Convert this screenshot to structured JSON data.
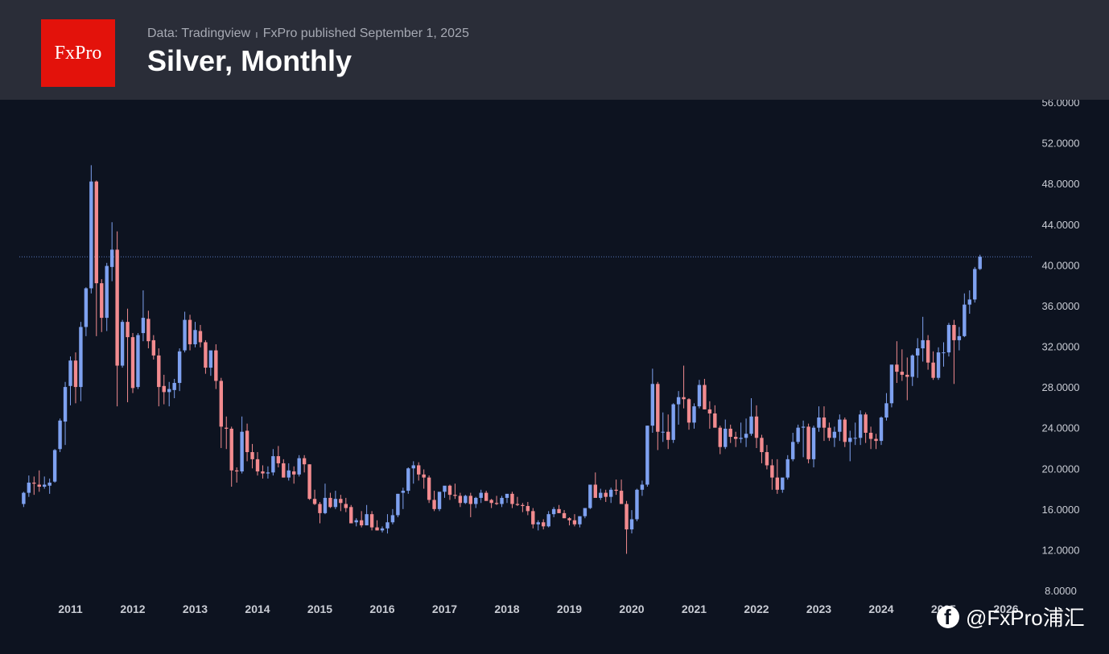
{
  "header": {
    "logo_text": "FxPro",
    "source": "Data: Tradingview",
    "separator": "ı",
    "published": "FxPro published September 1, 2025",
    "title": "Silver, Monthly"
  },
  "watermark": {
    "text": "@FxPro浦汇",
    "icon": "facebook-icon"
  },
  "colors": {
    "up": "#7ea1f0",
    "down": "#f28b8f",
    "background": "#0d1320",
    "header": "#2a2d38",
    "current_line": "#5a7bbd"
  },
  "chart_data": {
    "type": "candlestick",
    "title": "Silver, Monthly",
    "ylim": [
      8,
      56
    ],
    "y_ticks": [
      "56.0000",
      "52.0000",
      "48.0000",
      "44.0000",
      "40.0000",
      "36.0000",
      "32.0000",
      "28.0000",
      "24.0000",
      "20.0000",
      "16.0000",
      "12.0000",
      "8.0000"
    ],
    "x_ticks": [
      "2011",
      "2012",
      "2013",
      "2014",
      "2015",
      "2016",
      "2017",
      "2018",
      "2019",
      "2020",
      "2021",
      "2022",
      "2023",
      "2024",
      "2025",
      "2026"
    ],
    "x_start": "2010-04",
    "current_price_line": 40.8,
    "series": [
      {
        "name": "Silver",
        "ohlc": [
          [
            16.5,
            17.7,
            16.2,
            17.6
          ],
          [
            17.6,
            19.3,
            17.2,
            18.6
          ],
          [
            18.6,
            19.2,
            17.4,
            18.5
          ],
          [
            18.4,
            19.8,
            17.7,
            18.2
          ],
          [
            18.2,
            19.2,
            18.0,
            18.4
          ],
          [
            18.3,
            19.0,
            17.5,
            18.6
          ],
          [
            18.7,
            21.9,
            18.6,
            21.8
          ],
          [
            21.9,
            24.9,
            21.6,
            24.7
          ],
          [
            24.6,
            28.5,
            22.3,
            28.0
          ],
          [
            28.1,
            31.0,
            26.2,
            30.6
          ],
          [
            30.6,
            31.4,
            26.4,
            28.0
          ],
          [
            28.0,
            34.4,
            26.6,
            33.9
          ],
          [
            33.9,
            37.8,
            33.0,
            37.7
          ],
          [
            37.7,
            49.8,
            37.2,
            48.2
          ],
          [
            48.2,
            48.3,
            33.0,
            38.2
          ],
          [
            38.2,
            38.6,
            33.4,
            34.8
          ],
          [
            34.8,
            40.2,
            33.5,
            39.9
          ],
          [
            39.8,
            44.2,
            38.4,
            41.5
          ],
          [
            41.5,
            43.3,
            26.1,
            30.1
          ],
          [
            30.1,
            34.6,
            29.9,
            34.4
          ],
          [
            34.4,
            35.7,
            26.5,
            32.9
          ],
          [
            32.9,
            33.3,
            27.4,
            27.9
          ],
          [
            28.0,
            33.3,
            27.8,
            33.1
          ],
          [
            33.3,
            37.5,
            32.5,
            34.8
          ],
          [
            34.7,
            35.5,
            31.8,
            32.5
          ],
          [
            32.6,
            33.1,
            30.7,
            31.1
          ],
          [
            31.1,
            31.8,
            26.1,
            28.0
          ],
          [
            28.1,
            29.2,
            26.3,
            27.5
          ],
          [
            27.5,
            28.5,
            26.1,
            27.8
          ],
          [
            27.7,
            28.8,
            26.9,
            28.4
          ],
          [
            28.4,
            31.8,
            27.6,
            31.5
          ],
          [
            31.6,
            35.4,
            31.4,
            34.6
          ],
          [
            34.6,
            35.1,
            31.6,
            32.2
          ],
          [
            32.2,
            34.4,
            31.9,
            33.6
          ],
          [
            33.5,
            34.1,
            31.9,
            32.4
          ],
          [
            32.4,
            32.6,
            29.3,
            29.9
          ],
          [
            29.9,
            31.2,
            29.1,
            31.6
          ],
          [
            31.6,
            32.2,
            27.8,
            28.6
          ],
          [
            28.6,
            28.9,
            22.0,
            24.1
          ],
          [
            24.0,
            25.1,
            21.9,
            23.9
          ],
          [
            23.9,
            24.1,
            18.2,
            19.8
          ],
          [
            19.8,
            20.1,
            18.6,
            19.7
          ],
          [
            19.7,
            25.1,
            19.5,
            23.6
          ],
          [
            23.7,
            24.4,
            20.7,
            21.6
          ],
          [
            21.6,
            22.4,
            20.0,
            20.9
          ],
          [
            20.9,
            21.6,
            19.3,
            19.7
          ],
          [
            19.7,
            20.3,
            19.0,
            19.5
          ],
          [
            19.5,
            20.2,
            19.0,
            19.6
          ],
          [
            19.6,
            21.9,
            19.3,
            21.2
          ],
          [
            21.2,
            22.2,
            20.1,
            20.5
          ],
          [
            20.5,
            20.9,
            19.1,
            19.1
          ],
          [
            19.1,
            20.5,
            18.8,
            19.8
          ],
          [
            19.7,
            20.2,
            18.5,
            19.4
          ],
          [
            19.4,
            21.3,
            19.2,
            21.0
          ],
          [
            21.0,
            21.3,
            19.6,
            20.4
          ],
          [
            20.4,
            20.4,
            16.9,
            17.0
          ],
          [
            17.0,
            17.9,
            16.4,
            16.5
          ],
          [
            16.5,
            16.7,
            14.6,
            15.6
          ],
          [
            15.6,
            18.5,
            15.5,
            17.1
          ],
          [
            17.1,
            17.6,
            16.1,
            16.2
          ],
          [
            16.2,
            17.8,
            16.0,
            17.0
          ],
          [
            17.0,
            17.4,
            15.8,
            16.6
          ],
          [
            16.5,
            17.1,
            15.7,
            16.1
          ],
          [
            16.2,
            16.4,
            14.9,
            14.6
          ],
          [
            14.7,
            15.1,
            14.3,
            14.9
          ],
          [
            14.9,
            15.8,
            14.2,
            14.4
          ],
          [
            14.4,
            16.4,
            14.4,
            15.5
          ],
          [
            15.5,
            15.8,
            13.9,
            14.2
          ],
          [
            14.2,
            14.9,
            13.9,
            13.9
          ],
          [
            13.9,
            14.3,
            13.7,
            14.1
          ],
          [
            14.1,
            15.5,
            13.6,
            14.7
          ],
          [
            14.7,
            16.0,
            14.5,
            15.4
          ],
          [
            15.4,
            17.5,
            15.2,
            17.5
          ],
          [
            17.6,
            18.1,
            16.0,
            17.8
          ],
          [
            17.8,
            20.1,
            17.5,
            20.0
          ],
          [
            20.0,
            20.7,
            18.5,
            20.3
          ],
          [
            20.3,
            20.6,
            18.8,
            19.4
          ],
          [
            19.4,
            19.9,
            18.0,
            19.1
          ],
          [
            19.1,
            19.3,
            16.6,
            16.9
          ],
          [
            16.9,
            17.8,
            15.8,
            16.0
          ],
          [
            16.0,
            17.5,
            15.8,
            17.7
          ],
          [
            17.7,
            18.2,
            17.1,
            18.3
          ],
          [
            18.3,
            18.4,
            16.9,
            17.4
          ],
          [
            17.4,
            18.5,
            17.0,
            17.3
          ],
          [
            17.3,
            17.6,
            16.2,
            16.6
          ],
          [
            16.6,
            17.4,
            16.5,
            17.3
          ],
          [
            17.3,
            17.6,
            15.2,
            16.5
          ],
          [
            16.5,
            17.2,
            16.1,
            17.1
          ],
          [
            17.1,
            17.9,
            16.6,
            17.6
          ],
          [
            17.6,
            17.8,
            16.9,
            16.8
          ],
          [
            16.9,
            17.0,
            16.1,
            16.6
          ],
          [
            16.6,
            17.3,
            16.4,
            16.5
          ],
          [
            16.5,
            17.3,
            16.2,
            17.1
          ],
          [
            17.1,
            17.4,
            16.6,
            17.5
          ],
          [
            17.5,
            17.7,
            16.1,
            16.5
          ],
          [
            16.5,
            17.2,
            16.3,
            16.4
          ],
          [
            16.4,
            16.6,
            15.7,
            16.3
          ],
          [
            16.3,
            16.7,
            15.4,
            15.8
          ],
          [
            15.8,
            16.1,
            14.1,
            14.5
          ],
          [
            14.5,
            14.9,
            13.9,
            14.7
          ],
          [
            14.7,
            15.0,
            14.0,
            14.3
          ],
          [
            14.3,
            15.8,
            14.2,
            15.5
          ],
          [
            15.5,
            16.2,
            15.2,
            16.0
          ],
          [
            16.0,
            16.4,
            15.6,
            15.6
          ],
          [
            15.6,
            15.9,
            15.1,
            15.1
          ],
          [
            15.1,
            15.2,
            14.4,
            14.9
          ],
          [
            14.9,
            15.5,
            14.3,
            14.5
          ],
          [
            14.5,
            15.1,
            14.2,
            15.3
          ],
          [
            15.3,
            16.0,
            15.1,
            16.1
          ],
          [
            16.1,
            18.3,
            16.0,
            18.4
          ],
          [
            18.4,
            19.6,
            17.3,
            17.1
          ],
          [
            17.1,
            18.0,
            16.9,
            17.6
          ],
          [
            17.6,
            17.9,
            16.7,
            17.2
          ],
          [
            17.2,
            18.1,
            16.6,
            17.9
          ],
          [
            17.9,
            18.9,
            17.4,
            17.8
          ],
          [
            17.8,
            18.9,
            16.9,
            16.5
          ],
          [
            16.5,
            16.8,
            11.6,
            14.0
          ],
          [
            14.0,
            15.9,
            13.6,
            15.0
          ],
          [
            15.0,
            18.0,
            14.8,
            17.9
          ],
          [
            17.9,
            18.8,
            17.3,
            18.4
          ],
          [
            18.4,
            24.2,
            18.2,
            24.2
          ],
          [
            24.2,
            29.8,
            23.5,
            28.3
          ],
          [
            28.3,
            28.5,
            21.8,
            23.6
          ],
          [
            23.6,
            25.5,
            22.6,
            23.6
          ],
          [
            23.6,
            25.3,
            21.9,
            22.8
          ],
          [
            22.8,
            26.4,
            22.5,
            26.3
          ],
          [
            26.3,
            27.6,
            24.3,
            27.0
          ],
          [
            27.0,
            30.1,
            25.9,
            26.8
          ],
          [
            26.8,
            26.9,
            23.8,
            24.5
          ],
          [
            24.5,
            26.4,
            23.9,
            26.1
          ],
          [
            26.1,
            28.7,
            25.9,
            28.2
          ],
          [
            28.2,
            28.8,
            25.8,
            25.8
          ],
          [
            25.8,
            26.6,
            23.9,
            25.4
          ],
          [
            25.4,
            26.2,
            24.3,
            24.0
          ],
          [
            24.0,
            24.2,
            21.4,
            22.1
          ],
          [
            22.1,
            24.8,
            21.9,
            23.9
          ],
          [
            23.9,
            24.3,
            22.5,
            23.1
          ],
          [
            23.1,
            23.6,
            22.1,
            22.9
          ],
          [
            22.9,
            24.5,
            22.5,
            23.0
          ],
          [
            23.0,
            24.9,
            22.1,
            23.4
          ],
          [
            23.4,
            26.9,
            23.2,
            25.1
          ],
          [
            25.1,
            26.2,
            22.0,
            23.0
          ],
          [
            23.0,
            23.3,
            20.5,
            21.6
          ],
          [
            21.6,
            22.3,
            19.9,
            20.3
          ],
          [
            20.3,
            20.9,
            17.9,
            19.1
          ],
          [
            19.1,
            20.9,
            17.5,
            17.9
          ],
          [
            17.9,
            19.0,
            17.6,
            19.1
          ],
          [
            19.1,
            21.3,
            18.9,
            20.9
          ],
          [
            20.9,
            23.5,
            20.7,
            22.6
          ],
          [
            22.6,
            24.3,
            22.4,
            24.0
          ],
          [
            24.0,
            24.7,
            21.1,
            24.1
          ],
          [
            24.1,
            24.4,
            20.5,
            20.9
          ],
          [
            20.9,
            24.2,
            20.1,
            24.0
          ],
          [
            24.0,
            26.1,
            23.6,
            25.0
          ],
          [
            25.0,
            26.1,
            22.7,
            24.0
          ],
          [
            24.0,
            24.5,
            22.7,
            23.0
          ],
          [
            23.0,
            24.1,
            22.1,
            23.6
          ],
          [
            23.6,
            25.3,
            22.7,
            24.8
          ],
          [
            24.8,
            25.0,
            22.1,
            22.6
          ],
          [
            22.6,
            23.7,
            20.7,
            23.0
          ],
          [
            23.0,
            24.5,
            22.3,
            23.0
          ],
          [
            23.0,
            25.7,
            22.3,
            25.3
          ],
          [
            25.3,
            25.5,
            22.5,
            23.5
          ],
          [
            23.5,
            24.1,
            21.9,
            22.9
          ],
          [
            22.9,
            23.4,
            21.9,
            22.7
          ],
          [
            22.7,
            25.1,
            22.3,
            25.0
          ],
          [
            25.0,
            27.4,
            24.7,
            26.4
          ],
          [
            26.4,
            30.1,
            26.0,
            30.2
          ],
          [
            30.2,
            32.5,
            28.4,
            29.5
          ],
          [
            29.5,
            31.7,
            28.6,
            29.2
          ],
          [
            29.2,
            30.9,
            26.7,
            29.0
          ],
          [
            29.0,
            31.2,
            28.1,
            31.1
          ],
          [
            31.1,
            32.8,
            28.9,
            31.8
          ],
          [
            31.8,
            34.9,
            30.5,
            32.6
          ],
          [
            32.6,
            33.1,
            29.7,
            30.4
          ],
          [
            30.4,
            31.5,
            28.7,
            28.9
          ],
          [
            28.9,
            31.9,
            28.7,
            31.4
          ],
          [
            31.4,
            32.4,
            30.0,
            31.4
          ],
          [
            31.4,
            34.3,
            31.0,
            34.1
          ],
          [
            34.1,
            34.6,
            28.3,
            32.6
          ],
          [
            32.6,
            33.9,
            31.6,
            33.0
          ],
          [
            33.0,
            37.2,
            32.9,
            36.1
          ],
          [
            36.1,
            37.5,
            35.2,
            36.6
          ],
          [
            36.6,
            39.8,
            36.3,
            39.6
          ],
          [
            39.6,
            41.0,
            39.5,
            40.8
          ]
        ]
      }
    ]
  }
}
